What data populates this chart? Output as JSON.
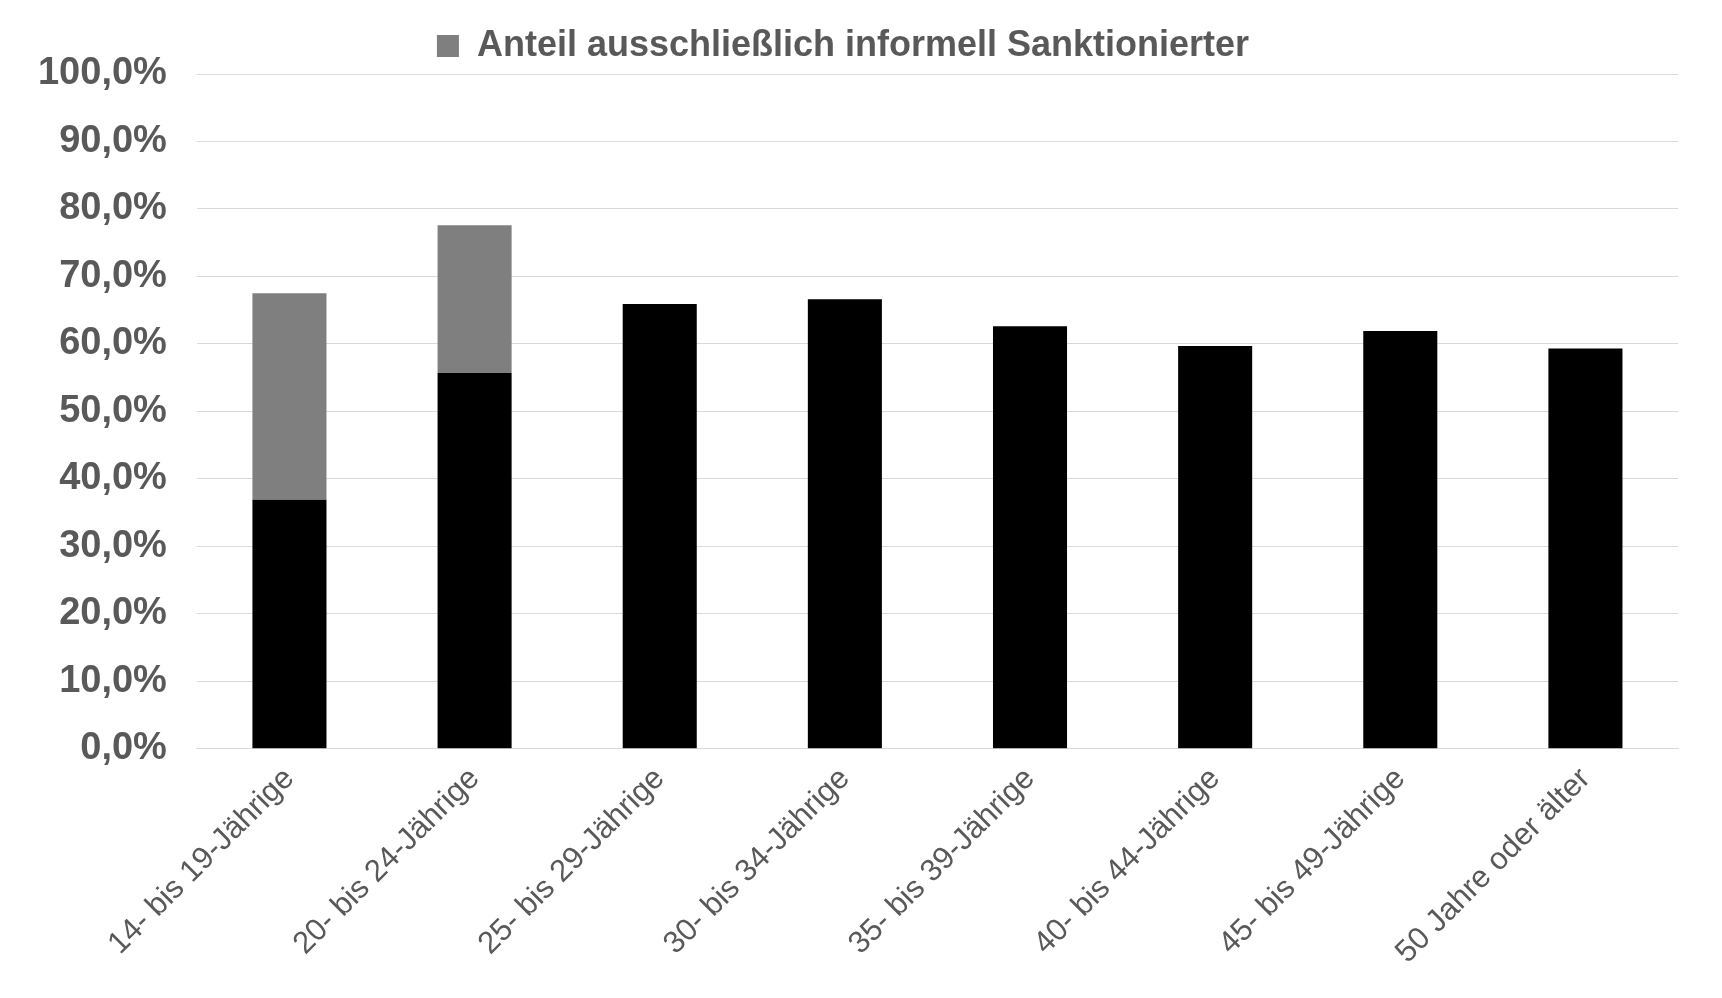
{
  "chart_data": {
    "type": "bar",
    "stacked": true,
    "categories": [
      "14- bis 19-Jährige",
      "20- bis 24-Jährige",
      "25- bis 29-Jährige",
      "30- bis 34-Jährige",
      "35- bis 39-Jährige",
      "40- bis 44-Jährige",
      "45- bis 49-Jährige",
      "50 Jahre oder älter"
    ],
    "series": [
      {
        "color": "#000000",
        "values": [
          36.9,
          55.7,
          65.9,
          66.6,
          62.6,
          59.7,
          61.9,
          59.3
        ]
      },
      {
        "name": "Anteil ausschließlich informell Sanktionierter",
        "color": "#7f7f7f",
        "values": [
          30.6,
          21.9,
          null,
          null,
          null,
          null,
          null,
          null
        ]
      }
    ],
    "ylim": [
      0,
      100
    ],
    "yticks": [
      {
        "value": 0,
        "label": "0,0%"
      },
      {
        "value": 10,
        "label": "10,0%"
      },
      {
        "value": 20,
        "label": "20,0%"
      },
      {
        "value": 30,
        "label": "30,0%"
      },
      {
        "value": 40,
        "label": "40,0%"
      },
      {
        "value": 50,
        "label": "50,0%"
      },
      {
        "value": 60,
        "label": "60,0%"
      },
      {
        "value": 70,
        "label": "70,0%"
      },
      {
        "value": 80,
        "label": "80,0%"
      },
      {
        "value": 90,
        "label": "90,0%"
      },
      {
        "value": 100,
        "label": "100,0%"
      }
    ],
    "grid": "y",
    "legend": "top"
  }
}
